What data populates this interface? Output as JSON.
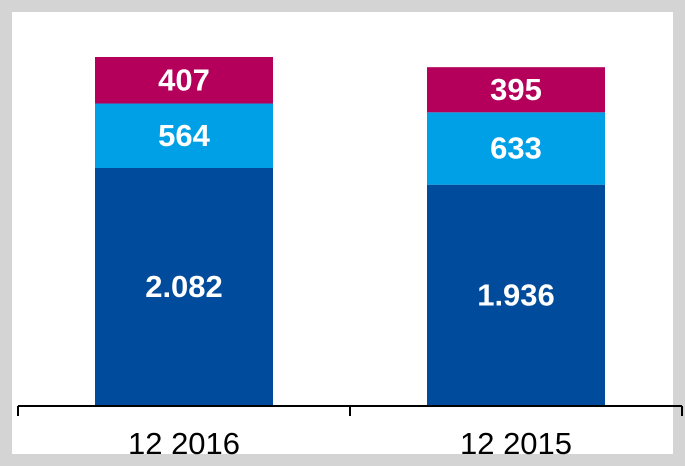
{
  "chart_data": {
    "type": "stacked_bar",
    "categories": [
      "12 2016",
      "12 2015"
    ],
    "series": [
      {
        "color": "#004b9b",
        "values": [
          2082,
          1936
        ],
        "value_labels": [
          "2.082",
          "1.936"
        ]
      },
      {
        "color": "#00a0e6",
        "values": [
          564,
          633
        ],
        "value_labels": [
          "564",
          "633"
        ]
      },
      {
        "color": "#b4005a",
        "values": [
          407,
          395
        ],
        "value_labels": [
          "407",
          "395"
        ]
      }
    ]
  }
}
